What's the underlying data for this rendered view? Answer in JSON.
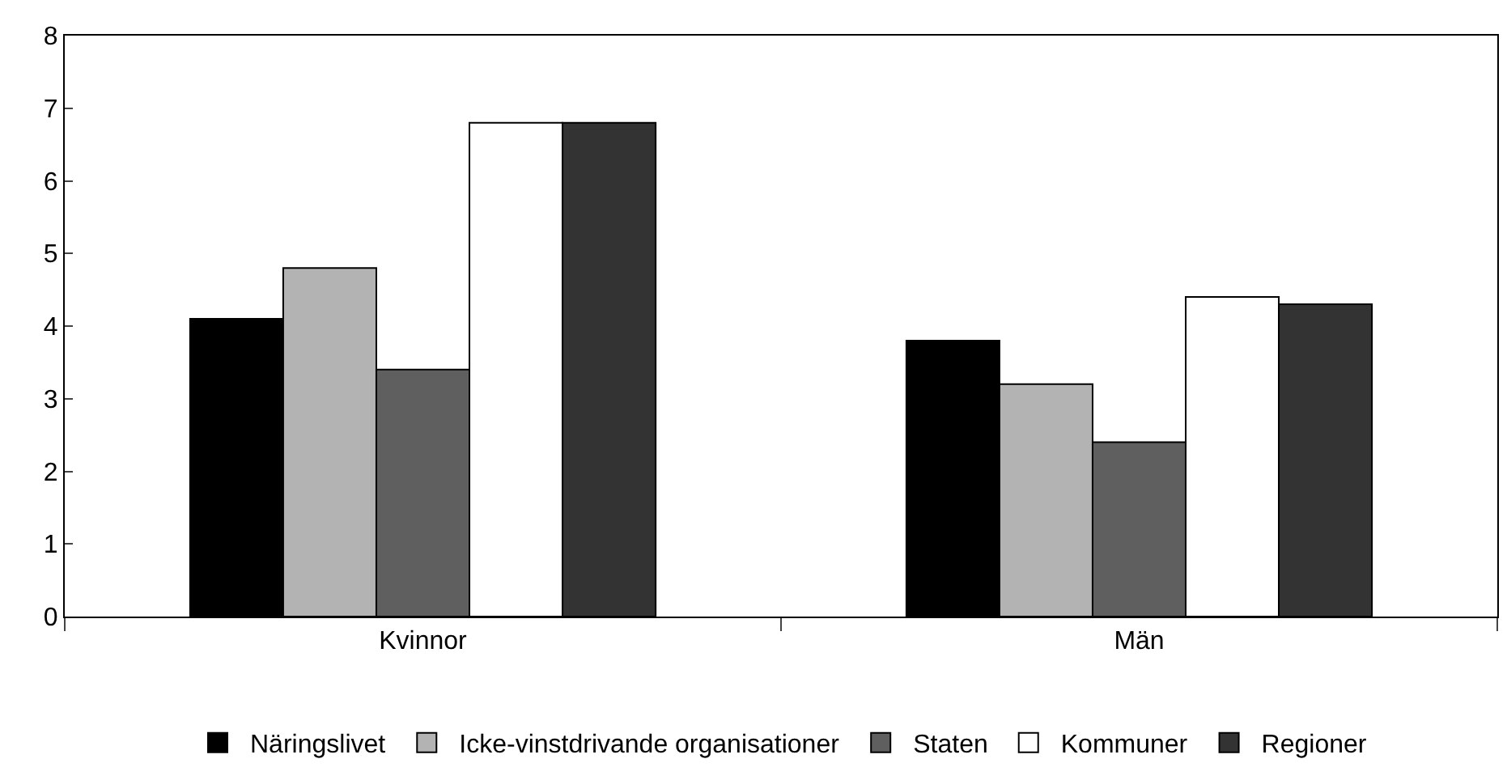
{
  "chart_data": {
    "type": "bar",
    "categories": [
      "Kvinnor",
      "Män"
    ],
    "series": [
      {
        "name": "Näringslivet",
        "color": "#000000",
        "values": [
          4.1,
          3.8
        ]
      },
      {
        "name": "Icke-vinstdrivande organisationer",
        "color": "#b3b3b3",
        "values": [
          4.8,
          3.2
        ]
      },
      {
        "name": "Staten",
        "color": "#5f5f5f",
        "values": [
          3.4,
          2.4
        ]
      },
      {
        "name": "Kommuner",
        "color": "#ffffff",
        "values": [
          6.8,
          4.4
        ]
      },
      {
        "name": "Regioner",
        "color": "#333333",
        "values": [
          6.8,
          4.3
        ]
      }
    ],
    "ylim": [
      0,
      8
    ],
    "yticks": [
      0,
      1,
      2,
      3,
      4,
      5,
      6,
      7,
      8
    ],
    "legend": "bottom"
  }
}
